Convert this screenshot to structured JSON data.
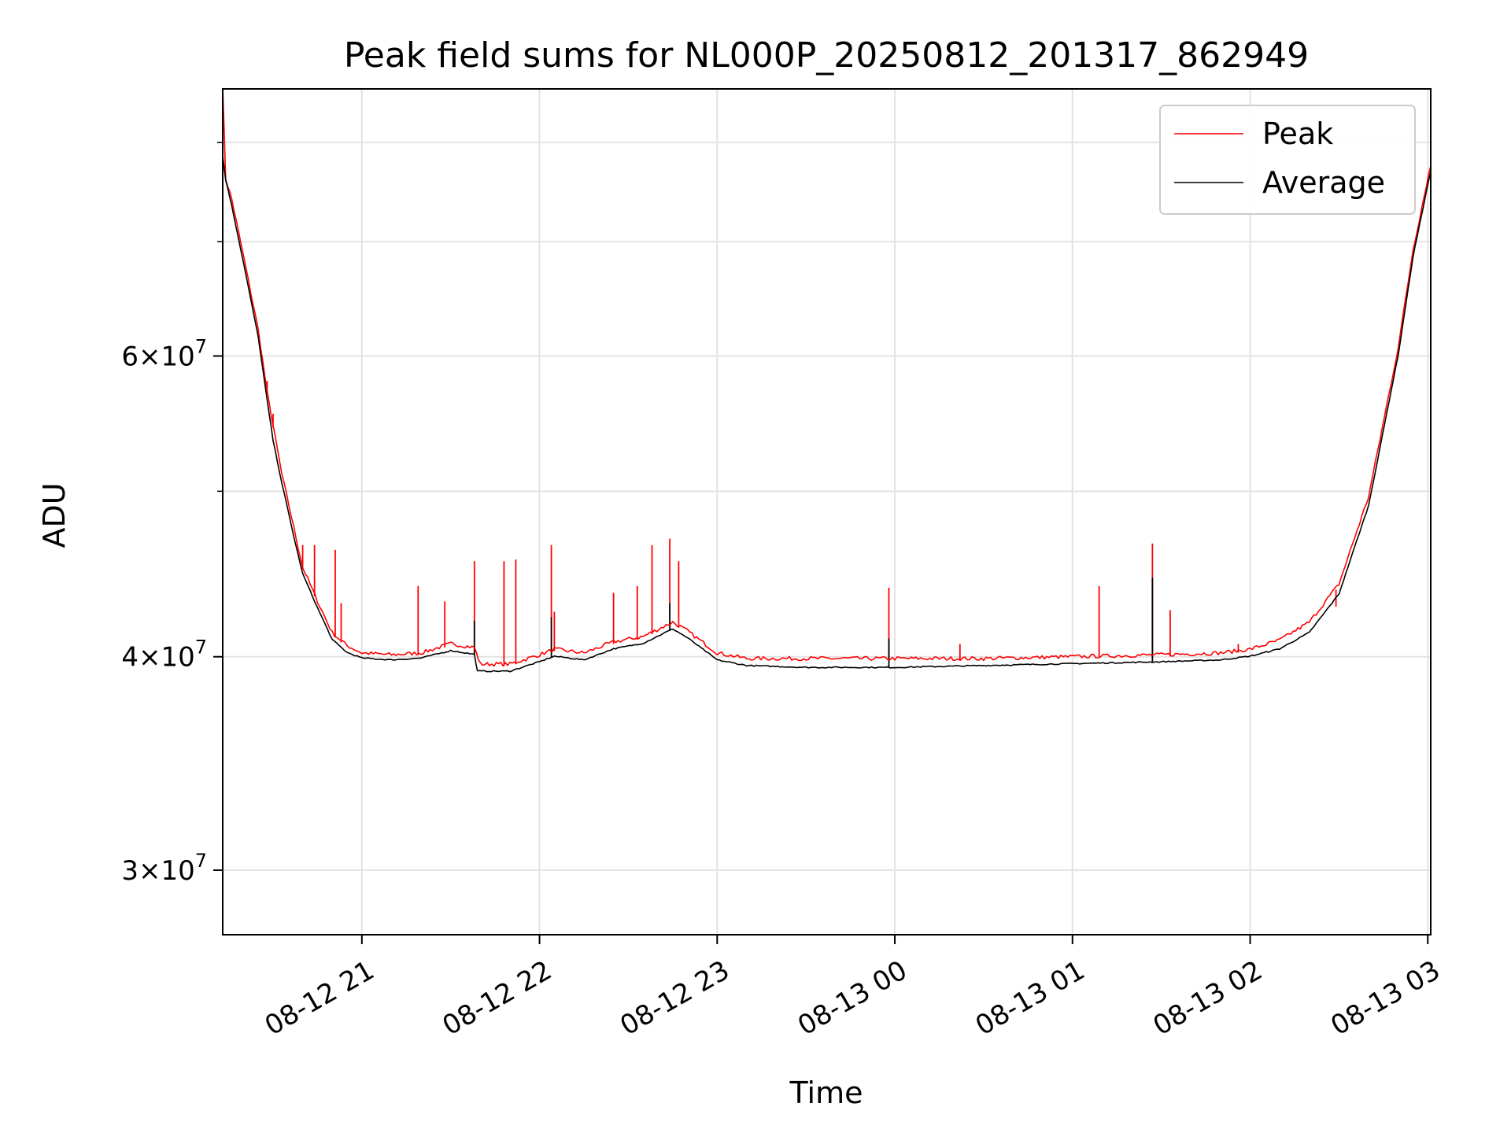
{
  "chart_data": {
    "type": "line",
    "title": "Peak field sums for NL000P_20250812_201317_862949",
    "xlabel": "Time",
    "ylabel": "ADU",
    "yscale": "log",
    "grid": true,
    "legend_position": "upper-right",
    "x_range": [
      "2025-08-12 20:13",
      "2025-08-13 03:01"
    ],
    "ylim": [
      27500000,
      86000000
    ],
    "x_ticks": [
      {
        "label": "08-12 21",
        "t": "2025-08-12 21:00"
      },
      {
        "label": "08-12 22",
        "t": "2025-08-12 22:00"
      },
      {
        "label": "08-12 23",
        "t": "2025-08-12 23:00"
      },
      {
        "label": "08-13 00",
        "t": "2025-08-13 00:00"
      },
      {
        "label": "08-13 01",
        "t": "2025-08-13 01:00"
      },
      {
        "label": "08-13 02",
        "t": "2025-08-13 02:00"
      },
      {
        "label": "08-13 03",
        "t": "2025-08-13 03:00"
      }
    ],
    "y_ticks": [
      {
        "value": 30000000,
        "mantissa": "3",
        "exponent": "7"
      },
      {
        "value": 40000000,
        "mantissa": "4",
        "exponent": "7"
      },
      {
        "value": 60000000,
        "mantissa": "6",
        "exponent": "7"
      }
    ],
    "y_minor_ticks": [
      50000000,
      70000000,
      80000000
    ],
    "series": [
      {
        "name": "Peak",
        "color": "#ff0000",
        "points": [
          [
            "2025-08-12 20:13",
            86000000
          ],
          [
            "2025-08-12 20:14",
            76000000
          ],
          [
            "2025-08-12 20:16",
            74000000
          ],
          [
            "2025-08-12 20:20",
            68500000
          ],
          [
            "2025-08-12 20:25",
            62000000
          ],
          [
            "2025-08-12 20:28",
            57000000
          ],
          [
            "2025-08-12 20:30",
            54500000
          ],
          [
            "2025-08-12 20:33",
            51000000
          ],
          [
            "2025-08-12 20:37",
            47500000
          ],
          [
            "2025-08-12 20:40",
            45000000
          ],
          [
            "2025-08-12 20:45",
            43000000
          ],
          [
            "2025-08-12 20:50",
            41200000
          ],
          [
            "2025-08-12 20:55",
            40500000
          ],
          [
            "2025-08-12 21:00",
            40100000
          ],
          [
            "2025-08-12 21:10",
            40000000
          ],
          [
            "2025-08-12 21:20",
            40100000
          ],
          [
            "2025-08-12 21:30",
            40600000
          ],
          [
            "2025-08-12 21:38",
            40400000
          ],
          [
            "2025-08-12 21:40",
            39500000
          ],
          [
            "2025-08-12 21:50",
            39500000
          ],
          [
            "2025-08-12 22:00",
            40000000
          ],
          [
            "2025-08-12 22:05",
            40300000
          ],
          [
            "2025-08-12 22:15",
            40100000
          ],
          [
            "2025-08-12 22:25",
            40700000
          ],
          [
            "2025-08-12 22:35",
            41000000
          ],
          [
            "2025-08-12 22:45",
            41800000
          ],
          [
            "2025-08-12 22:50",
            41300000
          ],
          [
            "2025-08-12 23:00",
            40100000
          ],
          [
            "2025-08-12 23:10",
            39800000
          ],
          [
            "2025-08-12 23:30",
            39800000
          ],
          [
            "2025-08-13 00:00",
            39800000
          ],
          [
            "2025-08-13 00:30",
            39800000
          ],
          [
            "2025-08-13 01:00",
            39900000
          ],
          [
            "2025-08-13 01:30",
            40000000
          ],
          [
            "2025-08-13 01:50",
            40100000
          ],
          [
            "2025-08-13 02:00",
            40300000
          ],
          [
            "2025-08-13 02:10",
            40800000
          ],
          [
            "2025-08-13 02:20",
            41800000
          ],
          [
            "2025-08-13 02:30",
            44000000
          ],
          [
            "2025-08-13 02:40",
            49500000
          ],
          [
            "2025-08-13 02:50",
            60500000
          ],
          [
            "2025-08-13 02:55",
            69000000
          ],
          [
            "2025-08-13 03:01",
            77500000
          ]
        ],
        "spikes": [
          [
            "2025-08-12 20:28",
            58000000
          ],
          [
            "2025-08-12 20:30",
            55500000
          ],
          [
            "2025-08-12 20:40",
            46500000
          ],
          [
            "2025-08-12 20:44",
            46500000
          ],
          [
            "2025-08-12 20:51",
            46200000
          ],
          [
            "2025-08-12 20:53",
            43000000
          ],
          [
            "2025-08-12 21:19",
            44000000
          ],
          [
            "2025-08-12 21:28",
            43100000
          ],
          [
            "2025-08-12 21:38",
            45500000
          ],
          [
            "2025-08-12 21:48",
            45500000
          ],
          [
            "2025-08-12 21:52",
            45600000
          ],
          [
            "2025-08-12 22:04",
            46500000
          ],
          [
            "2025-08-12 22:05",
            42500000
          ],
          [
            "2025-08-12 22:25",
            43600000
          ],
          [
            "2025-08-12 22:33",
            44000000
          ],
          [
            "2025-08-12 22:38",
            46500000
          ],
          [
            "2025-08-12 22:44",
            46900000
          ],
          [
            "2025-08-12 22:47",
            45500000
          ],
          [
            "2025-08-12 23:58",
            43900000
          ],
          [
            "2025-08-13 00:22",
            40700000
          ],
          [
            "2025-08-13 01:09",
            44000000
          ],
          [
            "2025-08-13 01:27",
            46600000
          ],
          [
            "2025-08-13 01:33",
            42600000
          ],
          [
            "2025-08-13 01:56",
            40700000
          ],
          [
            "2025-08-13 02:29",
            42800000
          ]
        ]
      },
      {
        "name": "Average",
        "color": "#000000",
        "points": [
          [
            "2025-08-12 20:13",
            78500000
          ],
          [
            "2025-08-12 20:14",
            76000000
          ],
          [
            "2025-08-12 20:16",
            73500000
          ],
          [
            "2025-08-12 20:20",
            68000000
          ],
          [
            "2025-08-12 20:25",
            61500000
          ],
          [
            "2025-08-12 20:28",
            56500000
          ],
          [
            "2025-08-12 20:30",
            53500000
          ],
          [
            "2025-08-12 20:33",
            50500000
          ],
          [
            "2025-08-12 20:37",
            47000000
          ],
          [
            "2025-08-12 20:40",
            44700000
          ],
          [
            "2025-08-12 20:45",
            42700000
          ],
          [
            "2025-08-12 20:50",
            40900000
          ],
          [
            "2025-08-12 20:55",
            40200000
          ],
          [
            "2025-08-12 21:00",
            39900000
          ],
          [
            "2025-08-12 21:10",
            39800000
          ],
          [
            "2025-08-12 21:20",
            39900000
          ],
          [
            "2025-08-12 21:30",
            40300000
          ],
          [
            "2025-08-12 21:38",
            40100000
          ],
          [
            "2025-08-12 21:39",
            39200000
          ],
          [
            "2025-08-12 21:50",
            39200000
          ],
          [
            "2025-08-12 22:00",
            39700000
          ],
          [
            "2025-08-12 22:05",
            40000000
          ],
          [
            "2025-08-12 22:15",
            39800000
          ],
          [
            "2025-08-12 22:25",
            40400000
          ],
          [
            "2025-08-12 22:35",
            40700000
          ],
          [
            "2025-08-12 22:45",
            41500000
          ],
          [
            "2025-08-12 22:50",
            41000000
          ],
          [
            "2025-08-12 23:00",
            39800000
          ],
          [
            "2025-08-12 23:10",
            39500000
          ],
          [
            "2025-08-12 23:30",
            39400000
          ],
          [
            "2025-08-13 00:00",
            39400000
          ],
          [
            "2025-08-13 00:30",
            39500000
          ],
          [
            "2025-08-13 01:00",
            39600000
          ],
          [
            "2025-08-13 01:30",
            39700000
          ],
          [
            "2025-08-13 01:50",
            39800000
          ],
          [
            "2025-08-13 02:00",
            40000000
          ],
          [
            "2025-08-13 02:10",
            40400000
          ],
          [
            "2025-08-13 02:20",
            41300000
          ],
          [
            "2025-08-13 02:30",
            43500000
          ],
          [
            "2025-08-13 02:40",
            49000000
          ],
          [
            "2025-08-13 02:50",
            60000000
          ],
          [
            "2025-08-13 02:55",
            68500000
          ],
          [
            "2025-08-13 03:01",
            77000000
          ]
        ],
        "spikes": [
          [
            "2025-08-12 21:38",
            42000000
          ],
          [
            "2025-08-12 22:04",
            42200000
          ],
          [
            "2025-08-12 22:44",
            43000000
          ],
          [
            "2025-08-12 23:58",
            41000000
          ],
          [
            "2025-08-13 01:27",
            44500000
          ]
        ]
      }
    ]
  }
}
